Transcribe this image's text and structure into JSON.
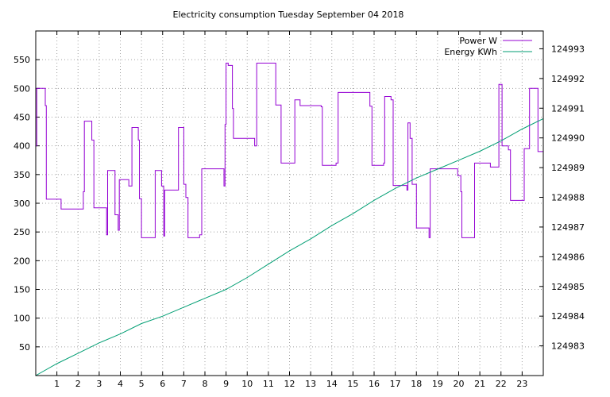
{
  "chart_data": {
    "type": "line",
    "title": "Electricity consumption Tuesday September 04 2018",
    "xlim": [
      0,
      24
    ],
    "x_ticks": [
      1,
      2,
      3,
      4,
      5,
      6,
      7,
      8,
      9,
      10,
      11,
      12,
      13,
      14,
      15,
      16,
      17,
      18,
      19,
      20,
      21,
      22,
      23
    ],
    "y_left": {
      "ylim": [
        0,
        600
      ],
      "ticks": [
        50,
        100,
        150,
        200,
        250,
        300,
        350,
        400,
        450,
        500,
        550
      ]
    },
    "y_right": {
      "ylim": [
        124982.0,
        124993.6
      ],
      "ticks": [
        124983,
        124984,
        124985,
        124986,
        124987,
        124988,
        124989,
        124990,
        124991,
        124992,
        124993
      ]
    },
    "grid": true,
    "legend_position": "top-right",
    "colors": {
      "power": "#9400d3",
      "energy": "#009e73",
      "grid": "#a0a0a0"
    },
    "series": [
      {
        "name": "Power W",
        "axis": "left",
        "style": "step",
        "points": [
          [
            0.0,
            400
          ],
          [
            0.05,
            500
          ],
          [
            0.45,
            470
          ],
          [
            0.5,
            307
          ],
          [
            1.2,
            290
          ],
          [
            2.25,
            320
          ],
          [
            2.3,
            443
          ],
          [
            2.65,
            410
          ],
          [
            2.75,
            292
          ],
          [
            3.35,
            245
          ],
          [
            3.4,
            357
          ],
          [
            3.75,
            280
          ],
          [
            3.9,
            253
          ],
          [
            3.95,
            341
          ],
          [
            4.4,
            330
          ],
          [
            4.55,
            432
          ],
          [
            4.85,
            410
          ],
          [
            4.9,
            308
          ],
          [
            5.0,
            240
          ],
          [
            5.65,
            357
          ],
          [
            5.95,
            330
          ],
          [
            6.05,
            243
          ],
          [
            6.1,
            323
          ],
          [
            6.75,
            432
          ],
          [
            7.0,
            333
          ],
          [
            7.1,
            310
          ],
          [
            7.2,
            240
          ],
          [
            7.75,
            245
          ],
          [
            7.85,
            360
          ],
          [
            8.9,
            330
          ],
          [
            8.95,
            437
          ],
          [
            9.0,
            544
          ],
          [
            9.1,
            540
          ],
          [
            9.3,
            465
          ],
          [
            9.35,
            413
          ],
          [
            10.35,
            400
          ],
          [
            10.45,
            544
          ],
          [
            11.35,
            471
          ],
          [
            11.6,
            370
          ],
          [
            12.25,
            480
          ],
          [
            12.5,
            470
          ],
          [
            13.5,
            468
          ],
          [
            13.55,
            366
          ],
          [
            14.2,
            370
          ],
          [
            14.3,
            493
          ],
          [
            15.8,
            469
          ],
          [
            15.9,
            366
          ],
          [
            16.45,
            370
          ],
          [
            16.5,
            486
          ],
          [
            16.8,
            480
          ],
          [
            16.9,
            331
          ],
          [
            17.55,
            323
          ],
          [
            17.6,
            440
          ],
          [
            17.7,
            413
          ],
          [
            17.8,
            333
          ],
          [
            18.0,
            257
          ],
          [
            18.6,
            240
          ],
          [
            18.65,
            360
          ],
          [
            19.95,
            348
          ],
          [
            20.1,
            320
          ],
          [
            20.15,
            240
          ],
          [
            20.75,
            370
          ],
          [
            21.5,
            363
          ],
          [
            21.8,
            363
          ],
          [
            21.9,
            507
          ],
          [
            22.05,
            400
          ],
          [
            22.35,
            393
          ],
          [
            22.45,
            305
          ],
          [
            23.1,
            395
          ],
          [
            23.35,
            500
          ],
          [
            23.75,
            390
          ],
          [
            24.0,
            390
          ]
        ]
      },
      {
        "name": "Energy KWh",
        "axis": "right",
        "style": "line",
        "points": [
          [
            0.0,
            124982.0
          ],
          [
            1.0,
            124982.4
          ],
          [
            2.0,
            124982.75
          ],
          [
            3.0,
            124983.1
          ],
          [
            4.0,
            124983.4
          ],
          [
            5.0,
            124983.75
          ],
          [
            6.0,
            124984.0
          ],
          [
            7.0,
            124984.3
          ],
          [
            8.0,
            124984.6
          ],
          [
            9.0,
            124984.9
          ],
          [
            10.0,
            124985.3
          ],
          [
            11.0,
            124985.75
          ],
          [
            12.0,
            124986.2
          ],
          [
            13.0,
            124986.6
          ],
          [
            14.0,
            124987.05
          ],
          [
            15.0,
            124987.45
          ],
          [
            16.0,
            124987.9
          ],
          [
            17.0,
            124988.3
          ],
          [
            18.0,
            124988.65
          ],
          [
            19.0,
            124988.95
          ],
          [
            20.0,
            124989.25
          ],
          [
            21.0,
            124989.55
          ],
          [
            22.0,
            124989.9
          ],
          [
            23.0,
            124990.3
          ],
          [
            24.0,
            124990.65
          ]
        ]
      }
    ]
  }
}
